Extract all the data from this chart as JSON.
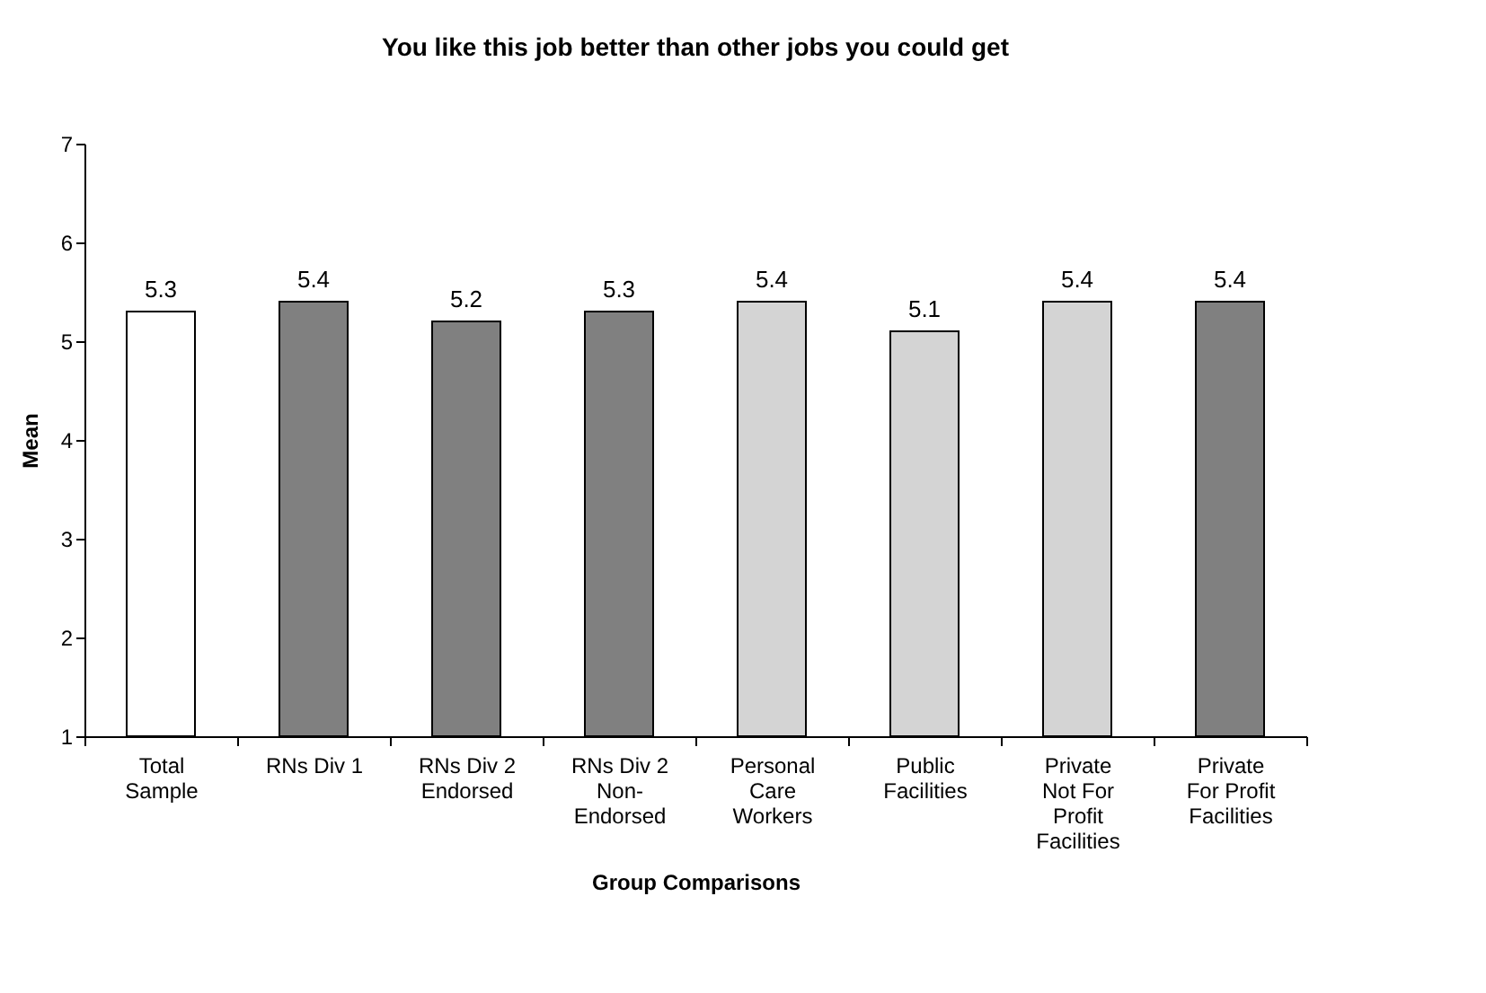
{
  "chart_data": {
    "type": "bar",
    "title": "You like this job better than other jobs you could get",
    "xlabel": "Group Comparisons",
    "ylabel": "Mean",
    "categories": [
      "Total Sample",
      "RNs Div 1",
      "RNs Div 2 Endorsed",
      "RNs Div 2 Non-Endorsed",
      "Personal Care Workers",
      "Public Facilities",
      "Private Not For Profit Facilities",
      "Private For Profit Facilities"
    ],
    "values": [
      5.3,
      5.4,
      5.2,
      5.3,
      5.4,
      5.1,
      5.4,
      5.4
    ],
    "colors": [
      "#ffffff",
      "#808080",
      "#808080",
      "#808080",
      "#d4d4d4",
      "#d4d4d4",
      "#d4d4d4",
      "#808080"
    ],
    "ylim": [
      1,
      7
    ],
    "yticks": [
      1,
      2,
      3,
      4,
      5,
      6,
      7
    ],
    "data_labels": true
  }
}
